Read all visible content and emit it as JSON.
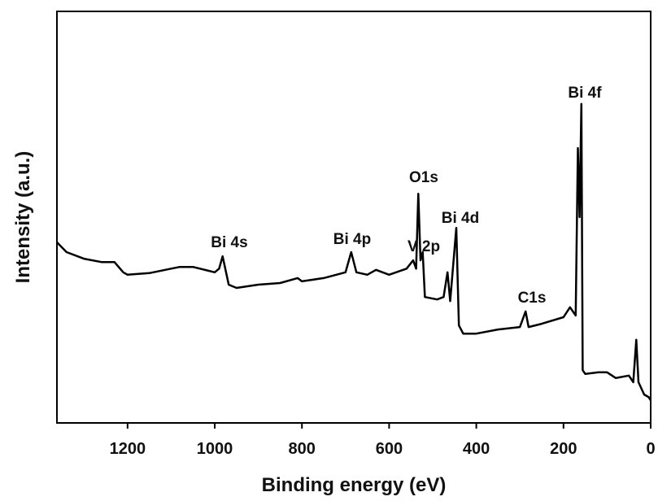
{
  "chart_data": {
    "type": "line",
    "xlabel": "Binding energy (eV)",
    "ylabel": "Intensity (a.u.)",
    "xlim": [
      1362,
      0
    ],
    "ylim": [
      0,
      100
    ],
    "xticks": [
      1200,
      1000,
      800,
      600,
      400,
      200,
      0
    ],
    "color": "#000000",
    "x": [
      1362,
      1340,
      1300,
      1260,
      1230,
      1210,
      1200,
      1150,
      1100,
      1080,
      1050,
      1000,
      990,
      982,
      968,
      950,
      900,
      850,
      810,
      800,
      750,
      700,
      687,
      675,
      650,
      630,
      600,
      560,
      545,
      538,
      533,
      528,
      523,
      518,
      490,
      475,
      466,
      460,
      446,
      440,
      430,
      400,
      350,
      300,
      287,
      280,
      250,
      200,
      185,
      172,
      167,
      163,
      159,
      156,
      150,
      120,
      100,
      80,
      50,
      40,
      33,
      28,
      15,
      5,
      0
    ],
    "values": [
      43.9,
      41.5,
      39.9,
      39.1,
      39.1,
      36.6,
      36.0,
      36.4,
      37.5,
      37.9,
      37.9,
      36.6,
      37.5,
      40.5,
      33.6,
      32.8,
      33.6,
      34.0,
      35.2,
      34.4,
      35.2,
      36.6,
      41.5,
      36.6,
      36.0,
      37.2,
      36.0,
      37.5,
      39.5,
      37.5,
      55.7,
      39.5,
      41.5,
      30.6,
      30.0,
      30.6,
      36.6,
      29.6,
      47.4,
      23.7,
      21.7,
      21.7,
      22.7,
      23.3,
      27.1,
      23.3,
      24.1,
      25.7,
      28.1,
      26.1,
      66.8,
      50.0,
      77.5,
      12.8,
      11.9,
      12.3,
      12.3,
      10.9,
      11.5,
      9.9,
      20.2,
      9.9,
      6.9,
      6.3,
      5.5
    ],
    "annotations": [
      "Bi 4s",
      "Bi 4p",
      "V 2p",
      "O1s",
      "Bi 4d",
      "C1s",
      "Bi 4f"
    ]
  }
}
